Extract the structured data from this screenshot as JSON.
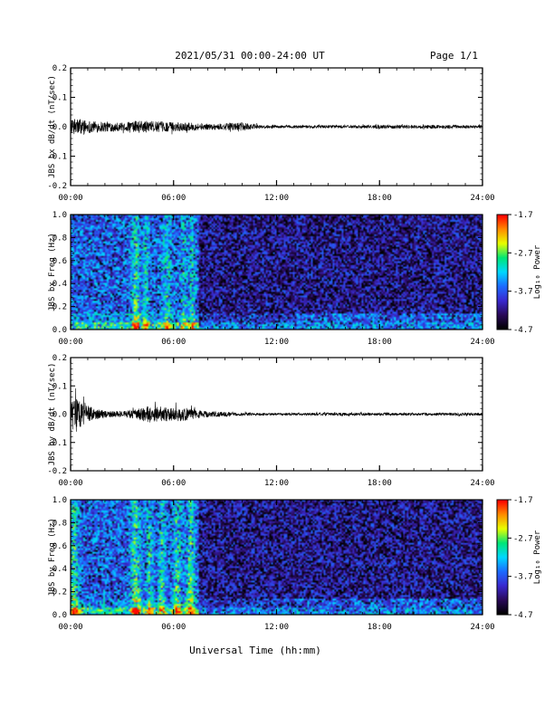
{
  "header": {
    "title": "2021/05/31  00:00-24:00 UT",
    "page": "Page 1/1"
  },
  "footer": {
    "xlabel": "Universal Time (hh:mm)"
  },
  "colors": {
    "trace": "#000000",
    "colormap": [
      "#000000",
      "#2a0a5a",
      "#3a2ad0",
      "#1c6cff",
      "#00d8ff",
      "#00e676",
      "#e8ff00",
      "#ff8c00",
      "#ff0000"
    ]
  },
  "chart_data": [
    {
      "type": "line",
      "ylabel": "JBS bx dB/dt (nT/sec)",
      "xlim": [
        0,
        24
      ],
      "ylim": [
        -0.2,
        0.2
      ],
      "xtick_labels": [
        "00:00",
        "06:00",
        "12:00",
        "18:00",
        "24:00"
      ],
      "ytick_labels": [
        "0.2",
        "0.1",
        "0.0",
        "-0.1",
        "-0.2"
      ],
      "envelope": {
        "hour": [
          0,
          0.5,
          1,
          2,
          3,
          4,
          4.5,
          5,
          6,
          7,
          8,
          9,
          10,
          11,
          12,
          14,
          16,
          18,
          20,
          22,
          24
        ],
        "amplitude": [
          0.022,
          0.03,
          0.022,
          0.018,
          0.014,
          0.022,
          0.02,
          0.018,
          0.016,
          0.014,
          0.01,
          0.012,
          0.014,
          0.006,
          0.005,
          0.005,
          0.005,
          0.006,
          0.006,
          0.006,
          0.005
        ]
      }
    },
    {
      "type": "heatmap",
      "ylabel": "JBS bx Freq (Hz)",
      "xlim": [
        0,
        24
      ],
      "ylim": [
        0,
        1
      ],
      "xtick_labels": [
        "00:00",
        "06:00",
        "12:00",
        "18:00",
        "24:00"
      ],
      "ytick_labels": [
        "1.0",
        "0.8",
        "0.6",
        "0.4",
        "0.2",
        "0.0"
      ],
      "colorbar": {
        "label": "Log₁₀ Power",
        "range": [
          -4.7,
          -1.7
        ],
        "tick_labels": [
          "-1.7",
          "-2.7",
          "-3.7",
          "-4.7"
        ]
      },
      "bursts": [
        {
          "hour": 3.8,
          "width": 0.25,
          "strength": 0.28
        },
        {
          "hour": 4.4,
          "width": 0.2,
          "strength": 0.22
        },
        {
          "hour": 5.6,
          "width": 0.25,
          "strength": 0.22
        },
        {
          "hour": 6.6,
          "width": 0.2,
          "strength": 0.2
        },
        {
          "hour": 7.1,
          "width": 0.2,
          "strength": 0.2
        }
      ]
    },
    {
      "type": "line",
      "ylabel": "JBS by dB/dt (nT/sec)",
      "xlim": [
        0,
        24
      ],
      "ylim": [
        -0.2,
        0.2
      ],
      "xtick_labels": [
        "00:00",
        "06:00",
        "12:00",
        "18:00",
        "24:00"
      ],
      "ytick_labels": [
        "0.2",
        "0.1",
        "0.0",
        "-0.1",
        "-0.2"
      ],
      "envelope": {
        "hour": [
          0,
          0.3,
          0.6,
          1,
          1.5,
          2,
          3,
          4,
          4.5,
          5,
          6,
          6.5,
          7,
          8,
          9,
          10,
          11,
          12,
          14,
          16,
          18,
          20,
          22,
          24
        ],
        "amplitude": [
          0.04,
          0.055,
          0.045,
          0.03,
          0.018,
          0.012,
          0.01,
          0.02,
          0.03,
          0.028,
          0.024,
          0.026,
          0.018,
          0.01,
          0.008,
          0.006,
          0.005,
          0.004,
          0.005,
          0.005,
          0.005,
          0.005,
          0.005,
          0.005
        ]
      }
    },
    {
      "type": "heatmap",
      "ylabel": "JBS by Freq (Hz)",
      "xlim": [
        0,
        24
      ],
      "ylim": [
        0,
        1
      ],
      "xtick_labels": [
        "00:00",
        "06:00",
        "12:00",
        "18:00",
        "24:00"
      ],
      "ytick_labels": [
        "1.0",
        "0.8",
        "0.6",
        "0.4",
        "0.2",
        "0.0"
      ],
      "colorbar": {
        "label": "Log₁₀ Power",
        "range": [
          -4.7,
          -1.7
        ],
        "tick_labels": [
          "-1.7",
          "-2.7",
          "-3.7",
          "-4.7"
        ]
      },
      "bursts": [
        {
          "hour": 0.2,
          "width": 0.25,
          "strength": 0.3
        },
        {
          "hour": 3.8,
          "width": 0.3,
          "strength": 0.32
        },
        {
          "hour": 4.6,
          "width": 0.2,
          "strength": 0.25
        },
        {
          "hour": 5.3,
          "width": 0.2,
          "strength": 0.25
        },
        {
          "hour": 6.2,
          "width": 0.25,
          "strength": 0.28
        },
        {
          "hour": 7.0,
          "width": 0.25,
          "strength": 0.3
        }
      ]
    }
  ]
}
